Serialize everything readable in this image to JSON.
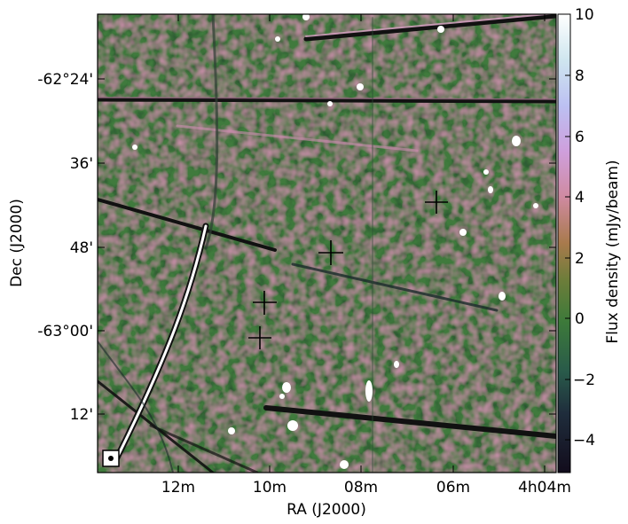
{
  "image": {
    "description_type": "radio-astronomy-map",
    "x_axis": {
      "label": "RA (J2000)",
      "ticks": [
        "12m",
        "10m",
        "08m",
        "06m",
        "4h04m"
      ]
    },
    "y_axis": {
      "label": "Dec (J2000)",
      "ticks": [
        "-62°24'",
        "36'",
        "48'",
        "-63°00'",
        "12'"
      ]
    },
    "colorbar": {
      "label": "Flux density (mJy/beam)",
      "ticks": [
        "10",
        "8",
        "6",
        "4",
        "2",
        "0",
        "−2",
        "−4"
      ],
      "range": [
        -5,
        10
      ]
    },
    "colors": {
      "background_green": "#3f7a3c",
      "dark_green": "#244a2a",
      "pink": "#c98faa",
      "white": "#ffffff",
      "black": "#000000"
    }
  }
}
